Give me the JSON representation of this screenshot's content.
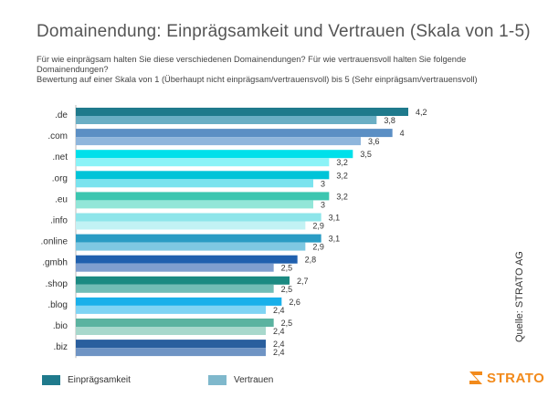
{
  "header": {
    "title": "Domainendung: Einprägsamkeit und Vertrauen (Skala von 1-5)",
    "subtitle_line1": "Für wie einprägsam halten Sie diese verschiedenen Domainendungen? Für wie vertrauensvoll halten Sie folgende Domainendungen?",
    "subtitle_line2": "Bewertung auf einer Skala von 1 (Überhaupt nicht einprägsam/vertrauensvoll) bis 5 (Sehr einprägsam/vertrauensvoll)"
  },
  "source": "Quelle: STRATO AG",
  "logo": {
    "text": "STRATO",
    "color": "#f28a1b"
  },
  "legend": {
    "item1": {
      "label": "Einprägsamkeit",
      "color": "#1f7a8c"
    },
    "item2": {
      "label": "Vertrauen",
      "color": "#7fb8cc"
    }
  },
  "chart_data": {
    "type": "bar",
    "orientation": "horizontal",
    "categories": [
      ".de",
      ".com",
      ".net",
      ".org",
      ".eu",
      ".info",
      ".online",
      ".gmbh",
      ".shop",
      ".blog",
      ".bio",
      ".biz"
    ],
    "series": [
      {
        "name": "Einprägsamkeit",
        "values": [
          4.2,
          4,
          3.5,
          3.2,
          3.2,
          3.1,
          3.1,
          2.8,
          2.7,
          2.6,
          2.5,
          2.4
        ],
        "value_labels": [
          "4,2",
          "4",
          "3,5",
          "3,2",
          "3,2",
          "3,1",
          "3,1",
          "2,8",
          "2,7",
          "2,6",
          "2,5",
          "2,4"
        ]
      },
      {
        "name": "Vertrauen",
        "values": [
          3.8,
          3.6,
          3.2,
          3,
          3,
          2.9,
          2.9,
          2.5,
          2.5,
          2.4,
          2.4,
          2.4
        ],
        "value_labels": [
          "3,8",
          "3,6",
          "3,2",
          "3",
          "3",
          "2,9",
          "2,9",
          "2,5",
          "2,5",
          "2,4",
          "2,4",
          "2,4"
        ]
      }
    ],
    "bar_colors": [
      [
        "#1f7a8c",
        "#6aaec4"
      ],
      [
        "#5b8fc4",
        "#8fb6dc"
      ],
      [
        "#00e0ea",
        "#8af3f7"
      ],
      [
        "#00c4d8",
        "#7ae3ee"
      ],
      [
        "#3cc6b0",
        "#92e6d8"
      ],
      [
        "#8ee5ea",
        "#c2f2f4"
      ],
      [
        "#2a9cc4",
        "#7ec8e2"
      ],
      [
        "#2060ae",
        "#7f9fcf"
      ],
      [
        "#1b8a82",
        "#72bdb6"
      ],
      [
        "#19b0ea",
        "#7fd4f4"
      ],
      [
        "#5bb3a0",
        "#a8d8cc"
      ],
      [
        "#2a5f9e",
        "#6f94c4"
      ]
    ],
    "xlim": [
      0,
      4.5
    ],
    "grid": false,
    "legend_position": "bottom-left"
  }
}
